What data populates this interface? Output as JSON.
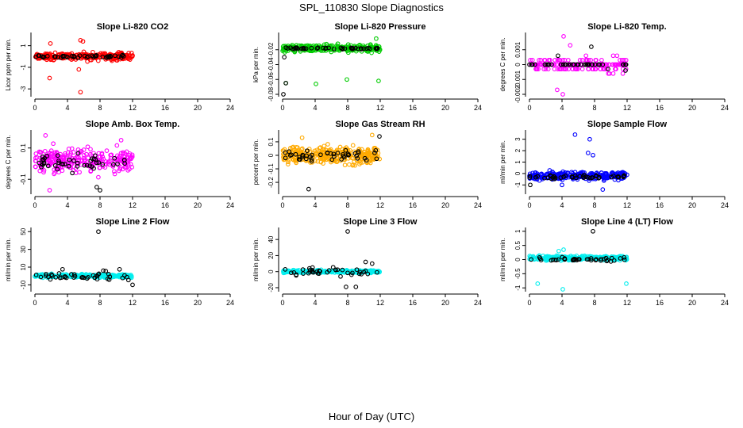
{
  "title": "SPL_110830  Slope Diagnostics",
  "xlabel": "Hour of Day (UTC)",
  "colors": {
    "co2": "#ff0000",
    "pressure": "#00cc00",
    "temp": "#ff00ff",
    "box_temp": "#ff00ff",
    "rh": "#ffaa00",
    "sample_flow": "#0000ff",
    "line": "#00eeee",
    "overlay": "#000000"
  },
  "chart_data": [
    {
      "type": "scatter",
      "title": "Slope Li-820 CO2",
      "ylabel": "Licor ppm per min.",
      "xlim": [
        0,
        24
      ],
      "ylim": [
        -3.5,
        2
      ],
      "xticks": [
        0,
        4,
        8,
        12,
        16,
        20,
        24
      ],
      "yticks": [
        1,
        -1,
        -3
      ],
      "color_key": "co2",
      "x_range": [
        0,
        12
      ],
      "series": [
        {
          "name": "main",
          "center": 0,
          "spread": 0.6,
          "n": 260,
          "outliers": [
            [
              1.8,
              -2.0
            ],
            [
              5.6,
              -3.3
            ],
            [
              5.4,
              -1.2
            ],
            [
              1.9,
              1.2
            ],
            [
              5.6,
              1.5
            ],
            [
              5.9,
              1.4
            ]
          ]
        },
        {
          "name": "overlay",
          "center": 0,
          "spread": 0.25,
          "n": 45,
          "outliers": []
        }
      ]
    },
    {
      "type": "scatter",
      "title": "Slope Li-820 Pressure",
      "ylabel": "kPa per min.",
      "xlim": [
        0,
        24
      ],
      "ylim": [
        -0.08,
        0
      ],
      "xticks": [
        0,
        4,
        8,
        12,
        16,
        20,
        24
      ],
      "yticks": [
        -0.02,
        -0.04,
        -0.06,
        -0.08
      ],
      "color_key": "pressure",
      "x_range": [
        0,
        12
      ],
      "series": [
        {
          "name": "main",
          "center": -0.018,
          "spread": 0.008,
          "n": 260,
          "outliers": [
            [
              0.4,
              -0.065
            ],
            [
              4.1,
              -0.066
            ],
            [
              7.9,
              -0.06
            ],
            [
              11.8,
              -0.062
            ],
            [
              11.5,
              -0.005
            ]
          ]
        },
        {
          "name": "overlay",
          "center": -0.018,
          "spread": 0.002,
          "n": 45,
          "outliers": [
            [
              0.1,
              -0.08
            ],
            [
              0.2,
              -0.03
            ],
            [
              0.4,
              -0.065
            ]
          ]
        }
      ]
    },
    {
      "type": "scatter",
      "title": "Slope Li-820 Temp.",
      "ylabel": "degrees C per min.",
      "xlim": [
        0,
        24
      ],
      "ylim": [
        -0.002,
        0.002
      ],
      "xticks": [
        0,
        4,
        8,
        12,
        16,
        20,
        24
      ],
      "yticks": [
        0.001,
        0,
        -0.001,
        -0.002
      ],
      "color_key": "temp",
      "x_range": [
        0,
        12
      ],
      "series": [
        {
          "name": "main",
          "center": 0,
          "spread": 0.0008,
          "n": 170,
          "quantize": 0.0003,
          "outliers": [
            [
              4.2,
              0.0019
            ],
            [
              5.0,
              0.0013
            ],
            [
              3.4,
              -0.0017
            ],
            [
              4.1,
              -0.002
            ]
          ]
        },
        {
          "name": "overlay",
          "center": 0,
          "spread": 0.0002,
          "n": 40,
          "quantize": 0.0003,
          "outliers": [
            [
              7.6,
              0.0012
            ],
            [
              3.5,
              0.0006
            ],
            [
              11.8,
              -0.0004
            ]
          ]
        }
      ]
    },
    {
      "type": "scatter",
      "title": "Slope Amb. Box Temp.",
      "ylabel": "degrees C per min.",
      "xlim": [
        0,
        24
      ],
      "ylim": [
        -0.18,
        0.2
      ],
      "xticks": [
        0,
        4,
        8,
        12,
        16,
        20,
        24
      ],
      "yticks": [
        0.1,
        -0.1
      ],
      "color_key": "box_temp",
      "x_range": [
        0,
        12
      ],
      "series": [
        {
          "name": "main",
          "center": 0.02,
          "spread": 0.13,
          "n": 260,
          "outliers": [
            [
              1.3,
              0.18
            ],
            [
              10.6,
              0.15
            ],
            [
              1.8,
              -0.17
            ]
          ]
        },
        {
          "name": "overlay",
          "center": 0.0,
          "spread": 0.09,
          "n": 45,
          "outliers": [
            [
              8.0,
              -0.17
            ],
            [
              7.6,
              -0.15
            ]
          ]
        }
      ]
    },
    {
      "type": "scatter",
      "title": "Slope Gas Stream RH",
      "ylabel": "percent per min.",
      "xlim": [
        0,
        24
      ],
      "ylim": [
        -0.27,
        0.17
      ],
      "xticks": [
        0,
        4,
        8,
        12,
        16,
        20,
        24
      ],
      "yticks": [
        0.1,
        0,
        -0.1,
        -0.2
      ],
      "color_key": "rh",
      "x_range": [
        0,
        12
      ],
      "series": [
        {
          "name": "main",
          "center": 0,
          "spread": 0.1,
          "n": 320,
          "outliers": [
            [
              11.0,
              0.15
            ],
            [
              2.4,
              0.13
            ]
          ]
        },
        {
          "name": "overlay",
          "center": 0,
          "spread": 0.07,
          "n": 45,
          "outliers": [
            [
              3.2,
              -0.25
            ],
            [
              11.9,
              0.14
            ]
          ]
        }
      ]
    },
    {
      "type": "scatter",
      "title": "Slope Sample Flow",
      "ylabel": "ml/min per min.",
      "xlim": [
        0,
        24
      ],
      "ylim": [
        -1.6,
        3.6
      ],
      "xticks": [
        0,
        4,
        8,
        12,
        16,
        20,
        24
      ],
      "yticks": [
        3,
        2,
        1,
        0,
        -1
      ],
      "color_key": "sample_flow",
      "x_range": [
        0,
        12
      ],
      "series": [
        {
          "name": "main",
          "center": -0.2,
          "spread": 0.6,
          "n": 260,
          "outliers": [
            [
              5.6,
              3.4
            ],
            [
              7.4,
              3.0
            ],
            [
              7.8,
              1.6
            ],
            [
              4.0,
              -1.0
            ],
            [
              9.0,
              -1.4
            ],
            [
              7.2,
              1.8
            ]
          ]
        },
        {
          "name": "overlay",
          "center": -0.3,
          "spread": 0.25,
          "n": 45,
          "outliers": [
            [
              0.1,
              -1.0
            ]
          ]
        }
      ]
    },
    {
      "type": "scatter",
      "title": "Slope Line 2 Flow",
      "ylabel": "ml/min per min.",
      "xlim": [
        0,
        24
      ],
      "ylim": [
        -15,
        52
      ],
      "xticks": [
        0,
        4,
        8,
        12,
        16,
        20,
        24
      ],
      "yticks": [
        50,
        30,
        10,
        -10
      ],
      "color_key": "line",
      "x_range": [
        0,
        12
      ],
      "series": [
        {
          "name": "main",
          "center": 0,
          "spread": 3,
          "n": 260,
          "outliers": []
        },
        {
          "name": "overlay",
          "center": 0,
          "spread": 8,
          "n": 40,
          "outliers": [
            [
              7.8,
              50
            ],
            [
              12.0,
              -10
            ],
            [
              3.4,
              7.5
            ],
            [
              10.4,
              7.5
            ],
            [
              8.4,
              6.0
            ]
          ]
        }
      ]
    },
    {
      "type": "scatter",
      "title": "Slope Line 3 Flow",
      "ylabel": "ml/min per min.",
      "xlim": [
        0,
        24
      ],
      "ylim": [
        -22,
        52
      ],
      "xticks": [
        0,
        4,
        8,
        12,
        16,
        20,
        24
      ],
      "yticks": [
        40,
        20,
        0,
        -20
      ],
      "color_key": "line",
      "x_range": [
        0,
        12
      ],
      "series": [
        {
          "name": "main",
          "center": 0,
          "spread": 3,
          "n": 260,
          "outliers": []
        },
        {
          "name": "overlay",
          "center": 0,
          "spread": 9,
          "n": 40,
          "outliers": [
            [
              8.0,
              50
            ],
            [
              7.8,
              -19
            ],
            [
              9.0,
              -19
            ],
            [
              10.2,
              12
            ],
            [
              11.0,
              10
            ]
          ]
        }
      ]
    },
    {
      "type": "scatter",
      "title": "Slope Line 4 (LT) Flow",
      "ylabel": "ml/min per min.",
      "xlim": [
        0,
        24
      ],
      "ylim": [
        -1.05,
        1.05
      ],
      "xticks": [
        0,
        4,
        8,
        12,
        16,
        20,
        24
      ],
      "yticks": [
        1.0,
        0.5,
        0.0,
        -0.5,
        -1.0
      ],
      "color_key": "line",
      "x_range": [
        0,
        12
      ],
      "series": [
        {
          "name": "main",
          "center": 0.05,
          "spread": 0.12,
          "n": 260,
          "outliers": [
            [
              1.0,
              -0.85
            ],
            [
              4.1,
              -1.05
            ],
            [
              11.9,
              -0.85
            ],
            [
              3.6,
              0.3
            ],
            [
              4.2,
              0.35
            ]
          ]
        },
        {
          "name": "overlay",
          "center": 0.0,
          "spread": 0.12,
          "n": 40,
          "outliers": [
            [
              7.8,
              1.0
            ]
          ]
        }
      ]
    }
  ]
}
